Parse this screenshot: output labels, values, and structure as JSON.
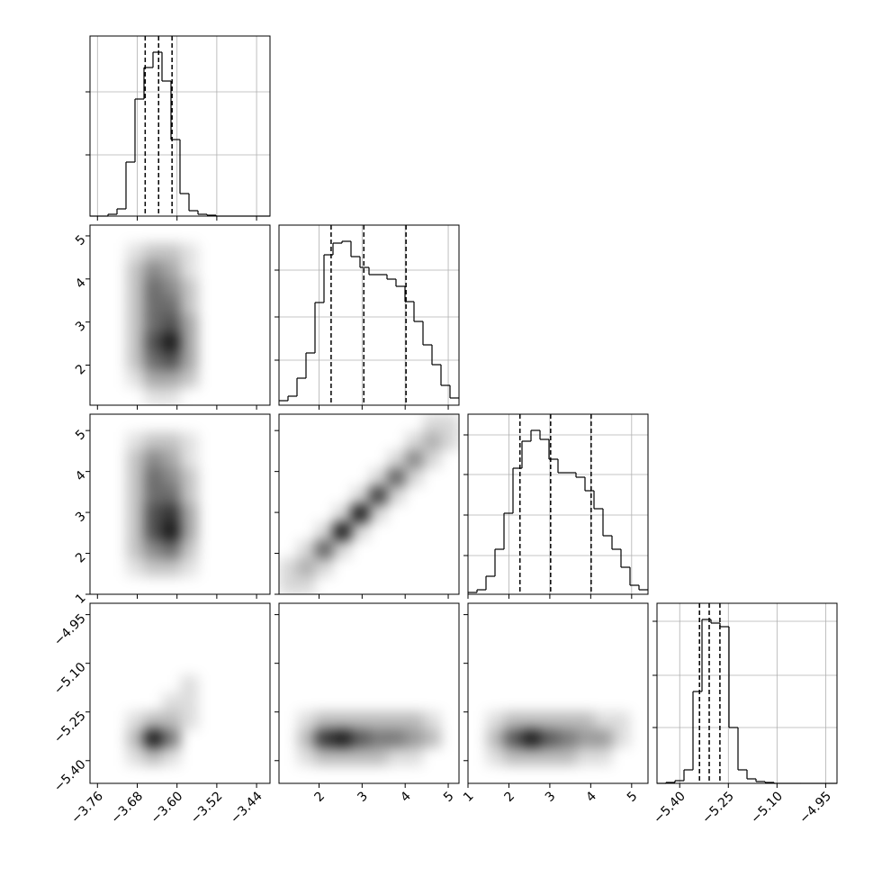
{
  "chart_data": {
    "type": "corner",
    "grid": true,
    "params": [
      {
        "lim": [
          -3.775,
          -3.413
        ],
        "ticks": [
          {
            "value": -3.76,
            "label": "−3.76"
          },
          {
            "value": -3.68,
            "label": "−3.68"
          },
          {
            "value": -3.6,
            "label": "−3.60"
          },
          {
            "value": -3.52,
            "label": "−3.52"
          },
          {
            "value": -3.44,
            "label": "−3.44"
          }
        ],
        "bins": [
          -3.775,
          -3.7569,
          -3.7388,
          -3.7207,
          -3.7026,
          -3.6845,
          -3.6664,
          -3.6483,
          -3.6302,
          -3.6121,
          -3.594,
          -3.5759,
          -3.5578,
          -3.5397,
          -3.5216,
          -3.5035,
          -3.4854,
          -3.4673,
          -3.4492,
          -3.4311,
          -3.413
        ],
        "counts": [
          0,
          0,
          2,
          8,
          60,
          130,
          165,
          182,
          150,
          85,
          25,
          6,
          2,
          1,
          0,
          0,
          0,
          0,
          0,
          0
        ],
        "count_lim": [
          0,
          200
        ],
        "count_ticks": [
          68,
          138
        ],
        "quantiles": [
          -3.664,
          -3.637,
          -3.61
        ]
      },
      {
        "lim": [
          1.07,
          5.25
        ],
        "ticks": [
          2,
          3,
          4,
          5
        ],
        "bins": [
          1.07,
          1.279,
          1.488,
          1.697,
          1.906,
          2.115,
          2.324,
          2.533,
          2.742,
          2.951,
          3.16,
          3.369,
          3.578,
          3.787,
          3.996,
          4.205,
          4.414,
          4.623,
          4.832,
          5.041,
          5.25
        ],
        "counts": [
          5,
          10,
          30,
          58,
          114,
          167,
          180,
          182,
          165,
          153,
          145,
          145,
          140,
          132,
          115,
          93,
          67,
          45,
          22,
          8
        ],
        "count_lim": [
          0,
          200
        ],
        "count_ticks": [
          50,
          98,
          150
        ],
        "quantiles": [
          2.28,
          3.04,
          4.02
        ]
      },
      {
        "lim": [
          1.0,
          5.4
        ],
        "ticks": [
          1,
          2,
          3,
          4,
          5
        ],
        "bins": [
          1.0,
          1.22,
          1.44,
          1.66,
          1.88,
          2.1,
          2.32,
          2.54,
          2.76,
          2.98,
          3.2,
          3.42,
          3.64,
          3.86,
          4.08,
          4.3,
          4.52,
          4.74,
          4.96,
          5.18,
          5.4
        ],
        "counts": [
          2,
          5,
          20,
          50,
          90,
          140,
          170,
          182,
          172,
          150,
          135,
          135,
          130,
          115,
          95,
          65,
          50,
          30,
          10,
          5
        ],
        "count_lim": [
          0,
          200
        ],
        "count_ticks": [
          43,
          88,
          133,
          177
        ],
        "quantiles": [
          2.27,
          3.02,
          4.01
        ]
      },
      {
        "lim": [
          -5.47,
          -4.915
        ],
        "ticks": [
          {
            "value": -5.4,
            "label": "−5.40"
          },
          {
            "value": -5.25,
            "label": "−5.25"
          },
          {
            "value": -5.1,
            "label": "−5.10"
          },
          {
            "value": -4.95,
            "label": "−4.95"
          }
        ],
        "bins": [
          -5.47,
          -5.44225,
          -5.4145,
          -5.38675,
          -5.359,
          -5.33125,
          -5.3035,
          -5.27575,
          -5.248,
          -5.22025,
          -5.1925,
          -5.16475,
          -5.137,
          -5.10925,
          -5.0815,
          -5.05375,
          -5.026,
          -4.99825,
          -4.9705,
          -4.94275,
          -4.915
        ],
        "counts": [
          0,
          1,
          3,
          15,
          102,
          182,
          178,
          174,
          62,
          15,
          5,
          2,
          1,
          0,
          0,
          0,
          0,
          0,
          0,
          0
        ],
        "count_lim": [
          0,
          200
        ],
        "count_ticks": [
          62,
          120,
          180
        ],
        "quantiles": [
          -5.339,
          -5.309,
          -5.276
        ]
      }
    ],
    "panels": [
      {
        "x": 0,
        "y": 1,
        "density": [
          [
            0,
            0,
            0,
            0,
            0,
            0,
            0,
            0,
            0,
            0
          ],
          [
            0,
            0,
            1,
            2,
            2,
            1,
            0,
            0,
            0,
            0
          ],
          [
            0,
            0,
            2,
            4,
            3,
            1,
            0,
            0,
            0,
            0
          ],
          [
            0,
            0,
            2,
            5,
            4,
            2,
            0,
            0,
            0,
            0
          ],
          [
            0,
            0,
            2,
            5,
            5,
            2,
            0,
            0,
            0,
            0
          ],
          [
            0,
            0,
            2,
            5,
            6,
            3,
            0,
            0,
            0,
            0
          ],
          [
            0,
            0,
            2,
            6,
            8,
            3,
            0,
            0,
            0,
            0
          ],
          [
            0,
            0,
            2,
            5,
            6,
            3,
            0,
            0,
            0,
            0
          ],
          [
            0,
            0,
            1,
            3,
            3,
            2,
            0,
            0,
            0,
            0
          ],
          [
            0,
            0,
            0,
            1,
            1,
            0,
            0,
            0,
            0,
            0
          ]
        ]
      },
      {
        "x": 0,
        "y": 2,
        "density": [
          [
            0,
            0,
            0,
            0,
            0,
            0,
            0,
            0,
            0,
            0
          ],
          [
            0,
            0,
            1,
            2,
            2,
            1,
            0,
            0,
            0,
            0
          ],
          [
            0,
            0,
            2,
            4,
            3,
            1,
            0,
            0,
            0,
            0
          ],
          [
            0,
            0,
            2,
            5,
            4,
            2,
            0,
            0,
            0,
            0
          ],
          [
            0,
            0,
            2,
            5,
            5,
            2,
            0,
            0,
            0,
            0
          ],
          [
            0,
            0,
            2,
            6,
            7,
            3,
            0,
            0,
            0,
            0
          ],
          [
            0,
            0,
            2,
            6,
            8,
            3,
            0,
            0,
            0,
            0
          ],
          [
            0,
            0,
            2,
            4,
            5,
            2,
            0,
            0,
            0,
            0
          ],
          [
            0,
            0,
            1,
            2,
            2,
            1,
            0,
            0,
            0,
            0
          ],
          [
            0,
            0,
            0,
            0,
            0,
            0,
            0,
            0,
            0,
            0
          ]
        ]
      },
      {
        "x": 1,
        "y": 2,
        "density": [
          [
            0,
            0,
            0,
            0,
            0,
            0,
            0,
            0,
            1,
            1
          ],
          [
            0,
            0,
            0,
            0,
            0,
            0,
            0,
            1,
            2,
            1
          ],
          [
            0,
            0,
            0,
            0,
            0,
            0,
            1,
            3,
            1,
            0
          ],
          [
            0,
            0,
            0,
            0,
            0,
            1,
            4,
            1,
            0,
            0
          ],
          [
            0,
            0,
            0,
            0,
            1,
            5,
            1,
            0,
            0,
            0
          ],
          [
            0,
            0,
            0,
            1,
            6,
            1,
            0,
            0,
            0,
            0
          ],
          [
            0,
            0,
            1,
            6,
            1,
            0,
            0,
            0,
            0,
            0
          ],
          [
            0,
            1,
            4,
            1,
            0,
            0,
            0,
            0,
            0,
            0
          ],
          [
            1,
            2,
            1,
            0,
            0,
            0,
            0,
            0,
            0,
            0
          ],
          [
            1,
            1,
            0,
            0,
            0,
            0,
            0,
            0,
            0,
            0
          ]
        ]
      },
      {
        "x": 0,
        "y": 3,
        "density": [
          [
            0,
            0,
            0,
            0,
            0,
            0,
            0,
            0,
            0,
            0
          ],
          [
            0,
            0,
            0,
            0,
            0,
            0,
            0,
            0,
            0,
            0
          ],
          [
            0,
            0,
            0,
            0,
            0,
            0,
            0,
            0,
            0,
            0
          ],
          [
            0,
            0,
            0,
            0,
            0,
            0,
            0,
            0,
            0,
            0
          ],
          [
            0,
            0,
            0,
            0,
            0,
            1,
            0,
            0,
            0,
            0
          ],
          [
            0,
            0,
            0,
            0,
            1,
            1,
            0,
            0,
            0,
            0
          ],
          [
            0,
            0,
            1,
            2,
            2,
            1,
            0,
            0,
            0,
            0
          ],
          [
            0,
            0,
            2,
            7,
            4,
            0,
            0,
            0,
            0,
            0
          ],
          [
            0,
            0,
            1,
            2,
            1,
            0,
            0,
            0,
            0,
            0
          ],
          [
            0,
            0,
            0,
            0,
            0,
            0,
            0,
            0,
            0,
            0
          ]
        ]
      },
      {
        "x": 1,
        "y": 3,
        "density": [
          [
            0,
            0,
            0,
            0,
            0,
            0,
            0,
            0,
            0,
            0
          ],
          [
            0,
            0,
            0,
            0,
            0,
            0,
            0,
            0,
            0,
            0
          ],
          [
            0,
            0,
            0,
            0,
            0,
            0,
            0,
            0,
            0,
            0
          ],
          [
            0,
            0,
            0,
            0,
            0,
            0,
            0,
            0,
            0,
            0
          ],
          [
            0,
            0,
            0,
            0,
            0,
            0,
            0,
            0,
            0,
            0
          ],
          [
            0,
            0,
            0,
            0,
            0,
            0,
            0,
            0,
            0,
            0
          ],
          [
            0,
            1,
            2,
            2,
            2,
            2,
            2,
            2,
            1,
            0
          ],
          [
            0,
            2,
            6,
            7,
            5,
            4,
            4,
            3,
            2,
            0
          ],
          [
            0,
            1,
            2,
            2,
            2,
            2,
            1,
            1,
            0,
            0
          ],
          [
            0,
            0,
            0,
            0,
            0,
            0,
            0,
            0,
            0,
            0
          ]
        ]
      },
      {
        "x": 2,
        "y": 3,
        "density": [
          [
            0,
            0,
            0,
            0,
            0,
            0,
            0,
            0,
            0,
            0
          ],
          [
            0,
            0,
            0,
            0,
            0,
            0,
            0,
            0,
            0,
            0
          ],
          [
            0,
            0,
            0,
            0,
            0,
            0,
            0,
            0,
            0,
            0
          ],
          [
            0,
            0,
            0,
            0,
            0,
            0,
            0,
            0,
            0,
            0
          ],
          [
            0,
            0,
            0,
            0,
            0,
            0,
            0,
            0,
            0,
            0
          ],
          [
            0,
            0,
            0,
            0,
            0,
            0,
            0,
            0,
            0,
            0
          ],
          [
            0,
            1,
            2,
            2,
            2,
            2,
            2,
            1,
            1,
            0
          ],
          [
            0,
            2,
            5,
            7,
            5,
            4,
            3,
            3,
            1,
            0
          ],
          [
            0,
            1,
            2,
            2,
            2,
            2,
            1,
            1,
            0,
            0
          ],
          [
            0,
            0,
            0,
            0,
            0,
            0,
            0,
            0,
            0,
            0
          ]
        ]
      }
    ]
  }
}
